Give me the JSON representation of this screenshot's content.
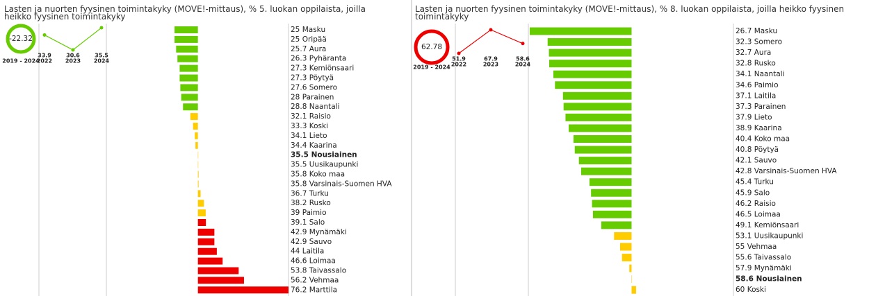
{
  "chart_data": [
    {
      "type": "bar",
      "title": "Lasten ja nuorten fyysinen toimintakyky (MOVE!-mittaus), % 5. luokan oppilaista, joilla heikko fyysinen toimintakyky",
      "kpi": {
        "value": -22.32,
        "label": "2019 - 2024",
        "color": "#66cc00"
      },
      "trend": {
        "x": [
          "2022",
          "2023",
          "2024"
        ],
        "values": [
          33.9,
          30.6,
          35.5
        ],
        "ylim": [
          30.6,
          35.5
        ],
        "color": "#66cc00"
      },
      "categories": [
        "Masku",
        "Oripää",
        "Aura",
        "Pyhäranta",
        "Kemiönsaari",
        "Pöytyä",
        "Somero",
        "Parainen",
        "Naantali",
        "Raisio",
        "Koski",
        "Lieto",
        "Kaarina",
        "Nousiainen",
        "Uusikaupunki",
        "Koko maa",
        "Varsinais-Suomen HVA",
        "Turku",
        "Rusko",
        "Paimio",
        "Salo",
        "Mynämäki",
        "Sauvo",
        "Laitila",
        "Loimaa",
        "Taivassalo",
        "Vehmaa",
        "Marttila"
      ],
      "values": [
        25,
        25,
        25.7,
        26.3,
        27.3,
        27.3,
        27.6,
        28,
        28.8,
        32.1,
        33.3,
        34.1,
        34.4,
        35.5,
        35.5,
        35.8,
        35.8,
        36.7,
        38.2,
        39,
        39.1,
        42.9,
        42.9,
        44,
        46.6,
        53.8,
        56.2,
        76.2
      ],
      "colors": [
        "#66cc00",
        "#66cc00",
        "#66cc00",
        "#66cc00",
        "#66cc00",
        "#66cc00",
        "#66cc00",
        "#66cc00",
        "#66cc00",
        "#ffcc00",
        "#ffcc00",
        "#ffcc00",
        "#ffcc00",
        "#ffcc00",
        "#ffcc00",
        "#ffcc00",
        "#ffcc00",
        "#ffcc00",
        "#ffcc00",
        "#ffcc00",
        "#ee0000",
        "#ee0000",
        "#ee0000",
        "#ee0000",
        "#ee0000",
        "#ee0000",
        "#ee0000",
        "#ee0000"
      ],
      "highlight": "Nousiainen",
      "xlim": [
        -5,
        76.2
      ]
    },
    {
      "type": "bar",
      "title": "Lasten ja nuorten fyysinen toimintakyky (MOVE!-mittaus), % 8. luokan oppilaista, joilla heikko fyysinen toimintakyky",
      "kpi": {
        "value": 62.78,
        "label": "2019 - 2024",
        "color": "#ee0000"
      },
      "trend": {
        "x": [
          "2022",
          "2023",
          "2024"
        ],
        "values": [
          51.9,
          67.9,
          58.6
        ],
        "ylim": [
          51.9,
          67.9
        ],
        "color": "#ee0000"
      },
      "categories": [
        "Masku",
        "Somero",
        "Aura",
        "Rusko",
        "Naantali",
        "Paimio",
        "Laitila",
        "Parainen",
        "Lieto",
        "Kaarina",
        "Koko maa",
        "Pöytyä",
        "Sauvo",
        "Varsinais-Suomen HVA",
        "Turku",
        "Salo",
        "Raisio",
        "Loimaa",
        "Kemiönsaari",
        "Uusikaupunki",
        "Vehmaa",
        "Taivassalo",
        "Mynämäki",
        "Nousiainen",
        "Koski"
      ],
      "values": [
        26.7,
        32.3,
        32.7,
        32.8,
        34.1,
        34.6,
        37.1,
        37.3,
        37.9,
        38.9,
        40.4,
        40.8,
        42.1,
        42.8,
        45.4,
        45.9,
        46.2,
        46.5,
        49.1,
        53.1,
        55,
        55.6,
        57.9,
        58.6,
        60
      ],
      "colors": [
        "#66cc00",
        "#66cc00",
        "#66cc00",
        "#66cc00",
        "#66cc00",
        "#66cc00",
        "#66cc00",
        "#66cc00",
        "#66cc00",
        "#66cc00",
        "#66cc00",
        "#66cc00",
        "#66cc00",
        "#66cc00",
        "#66cc00",
        "#66cc00",
        "#66cc00",
        "#66cc00",
        "#66cc00",
        "#ffcc00",
        "#ffcc00",
        "#ffcc00",
        "#ffcc00",
        "#ffcc00",
        "#ffcc00"
      ],
      "highlight": "Nousiainen",
      "xlim": [
        26.7,
        90.5
      ]
    }
  ]
}
